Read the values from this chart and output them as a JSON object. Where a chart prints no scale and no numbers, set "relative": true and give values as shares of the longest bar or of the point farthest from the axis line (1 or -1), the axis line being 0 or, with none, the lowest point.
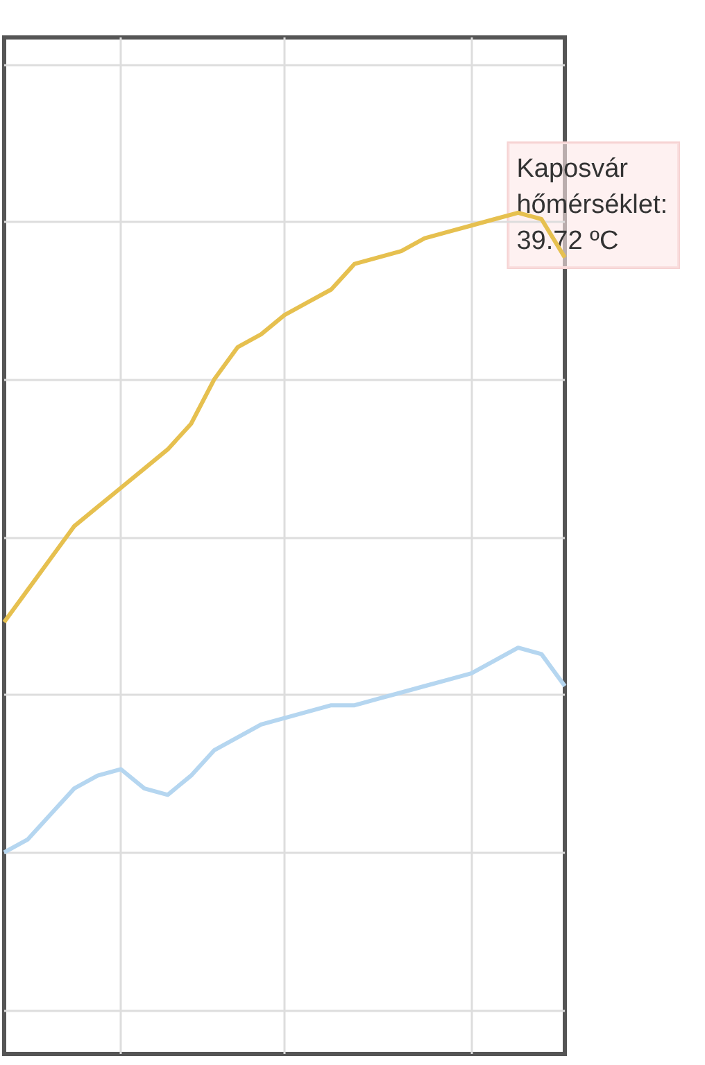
{
  "chart_data": {
    "type": "line",
    "relative": true,
    "grid": true,
    "annotations": [
      "Kaposvár hőmérséklet: 39.72 ºC"
    ],
    "categories": [
      null,
      null,
      null,
      null,
      null,
      null,
      null,
      null,
      null,
      null,
      null,
      null,
      null,
      null,
      null,
      null,
      null,
      null,
      null,
      null,
      null,
      null,
      null,
      null,
      null
    ],
    "series": [
      {
        "color": "#e6c04f",
        "values": [
          0.36,
          0.41,
          0.46,
          0.51,
          0.54,
          0.57,
          0.6,
          0.63,
          0.67,
          0.74,
          0.79,
          0.81,
          0.84,
          0.86,
          0.88,
          0.92,
          0.93,
          0.94,
          0.96,
          0.97,
          0.98,
          0.99,
          1.0,
          0.99,
          0.93
        ]
      },
      {
        "color": "#b5d6f0",
        "values": [
          0,
          0.02,
          0.06,
          0.1,
          0.12,
          0.13,
          0.1,
          0.09,
          0.12,
          0.16,
          0.18,
          0.2,
          0.21,
          0.22,
          0.23,
          0.23,
          0.24,
          0.25,
          0.26,
          0.27,
          0.28,
          0.3,
          0.32,
          0.31,
          0.26
        ]
      }
    ]
  }
}
